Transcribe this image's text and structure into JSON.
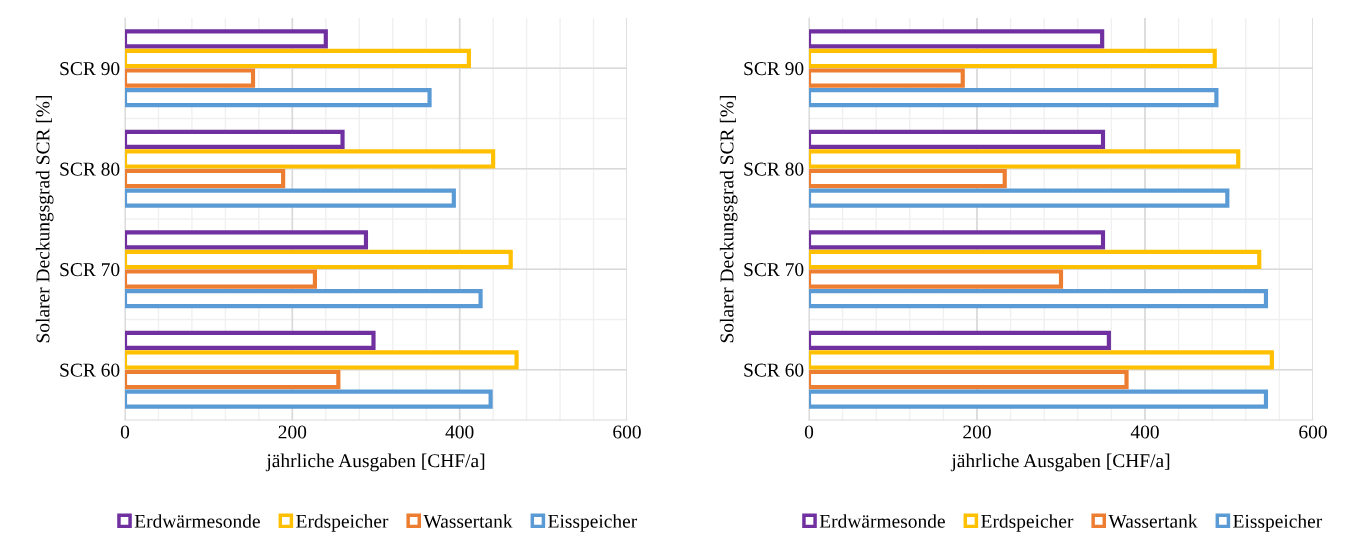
{
  "chart_data": [
    {
      "type": "bar",
      "orientation": "horizontal",
      "categories": [
        "SCR 90",
        "SCR 80",
        "SCR 70",
        "SCR 60"
      ],
      "xlabel": "jährliche Ausgaben [CHF/a]",
      "ylabel": "Solarer Deckungsgrad SCR [%]",
      "xlim": [
        0,
        600
      ],
      "xticks": [
        0,
        200,
        400,
        600
      ],
      "grid": true,
      "legend": "bottom",
      "series": [
        {
          "name": "Erdwärmesonde",
          "color": "#7030a0",
          "values": [
            240,
            260,
            288,
            297
          ]
        },
        {
          "name": "Erdspeicher",
          "color": "#ffc000",
          "values": [
            411,
            440,
            461,
            468
          ]
        },
        {
          "name": "Wassertank",
          "color": "#ed7d31",
          "values": [
            153,
            189,
            227,
            255
          ]
        },
        {
          "name": "Eisspeicher",
          "color": "#5b9bd5",
          "values": [
            364,
            393,
            425,
            437
          ]
        }
      ]
    },
    {
      "type": "bar",
      "orientation": "horizontal",
      "categories": [
        "SCR 90",
        "SCR 80",
        "SCR 70",
        "SCR 60"
      ],
      "xlabel": "jährliche Ausgaben [CHF/a]",
      "ylabel": "Solarer Deckungsgrad SCR [%]",
      "xlim": [
        0,
        600
      ],
      "xticks": [
        0,
        200,
        400,
        600
      ],
      "grid": true,
      "legend": "bottom",
      "series": [
        {
          "name": "Erdwärmesonde",
          "color": "#7030a0",
          "values": [
            349,
            350,
            350,
            357
          ]
        },
        {
          "name": "Erdspeicher",
          "color": "#ffc000",
          "values": [
            483,
            511,
            536,
            551
          ]
        },
        {
          "name": "Wassertank",
          "color": "#ed7d31",
          "values": [
            183,
            233,
            300,
            378
          ]
        },
        {
          "name": "Eisspeicher",
          "color": "#5b9bd5",
          "values": [
            485,
            498,
            544,
            544
          ]
        }
      ]
    }
  ]
}
